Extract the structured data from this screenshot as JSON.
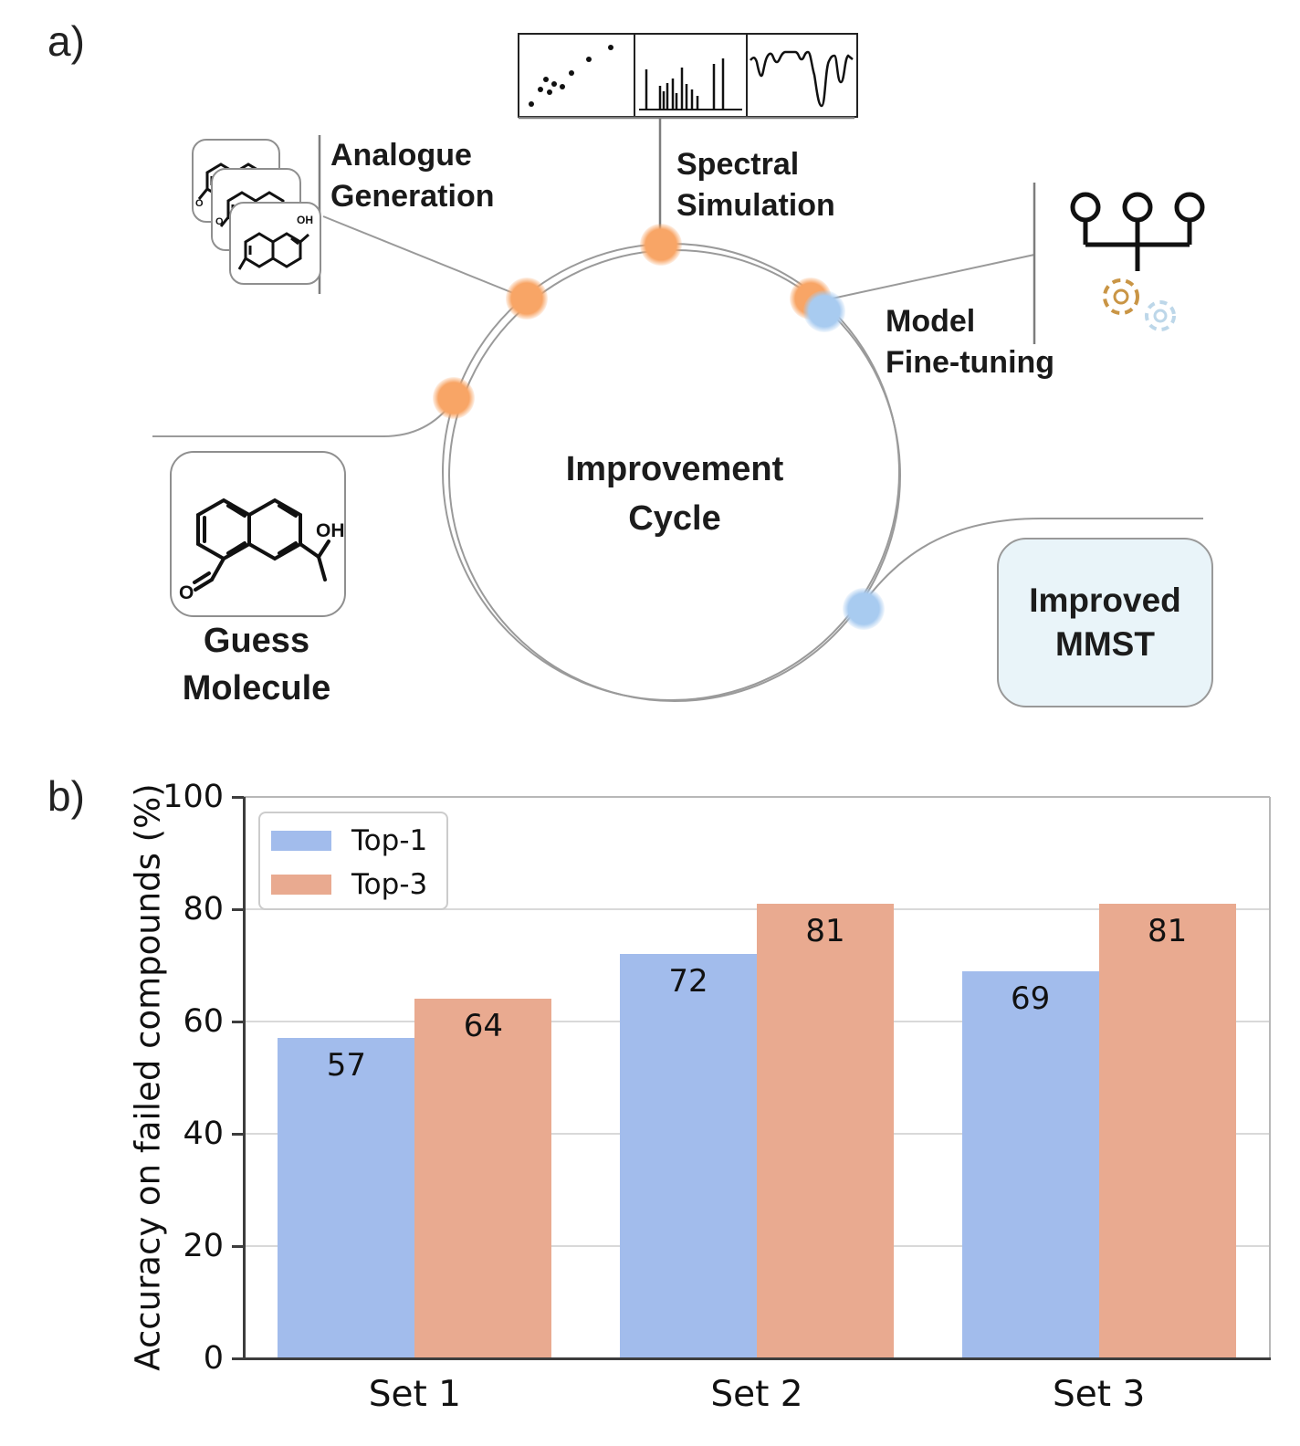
{
  "panel_a": {
    "label": "a)",
    "analogue_generation": {
      "line1": "Analogue",
      "line2": "Generation"
    },
    "spectral_simulation": {
      "line1": "Spectral",
      "line2": "Simulation"
    },
    "model_fine_tuning": {
      "line1": "Model",
      "line2": "Fine-tuning"
    },
    "improvement_cycle": {
      "line1": "Improvement",
      "line2": "Cycle"
    },
    "guess_molecule": {
      "line1": "Guess",
      "line2": "Molecule"
    },
    "improved_mmst": {
      "line1": "Improved",
      "line2": "MMST"
    },
    "molecule_text": {
      "oh": "OH",
      "o": "O",
      "oh_small": "OH"
    },
    "colors": {
      "orange_node": "#f8a566",
      "blue_node": "#a8cbf0",
      "connector": "#9a9a9a",
      "mmst_box_fill": "#e9f4f9"
    }
  },
  "panel_b": {
    "label": "b)"
  },
  "chart_data": {
    "type": "bar",
    "title": "",
    "categories": [
      "Set 1",
      "Set 2",
      "Set 3"
    ],
    "series": [
      {
        "name": "Top-1",
        "color": "#a2bcec",
        "values": [
          57,
          72,
          69
        ]
      },
      {
        "name": "Top-3",
        "color": "#e9aa90",
        "values": [
          64,
          81,
          81
        ]
      }
    ],
    "xlabel": "",
    "ylabel": "Accuracy on failed compounds (%)",
    "ylim": [
      0,
      100
    ],
    "yticks": [
      0,
      20,
      40,
      60,
      80,
      100
    ],
    "grid": true,
    "bar_value_labels": true,
    "legend_position": "upper left"
  }
}
